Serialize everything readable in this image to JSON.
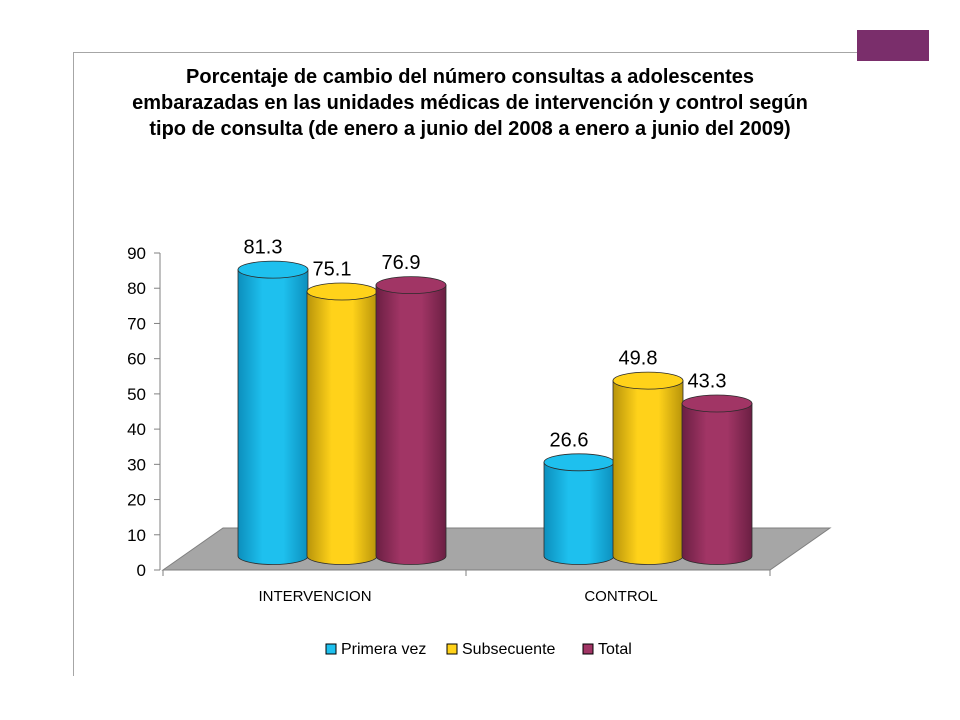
{
  "slide": {
    "accent_color": "#7a2e6b",
    "frame_color": "#a6a6a6"
  },
  "chart_data": {
    "type": "bar",
    "title": "Porcentaje de cambio del número consultas a adolescentes embarazadas en las unidades médicas de intervención y control según tipo de consulta (de enero a junio del 2008 a enero a junio del 2009)",
    "categories": [
      "INTERVENCION",
      "CONTROL"
    ],
    "series": [
      {
        "name": "Primera vez",
        "values": [
          81.3,
          26.6
        ],
        "color": "#1ec0ee",
        "dark": "#0c8fbd"
      },
      {
        "name": "Subsecuente",
        "values": [
          75.1,
          49.8
        ],
        "color": "#ffd21a",
        "dark": "#b8940a"
      },
      {
        "name": "Total",
        "values": [
          76.9,
          43.3
        ],
        "color": "#a13565",
        "dark": "#6b1f43"
      }
    ],
    "ylim": [
      0,
      90
    ],
    "yticks": [
      0,
      10,
      20,
      30,
      40,
      50,
      60,
      70,
      80,
      90
    ],
    "xlabel": "",
    "ylabel": "",
    "legend_position": "bottom",
    "style": "3d-cylinder",
    "floor_color": "#a6a6a6"
  }
}
